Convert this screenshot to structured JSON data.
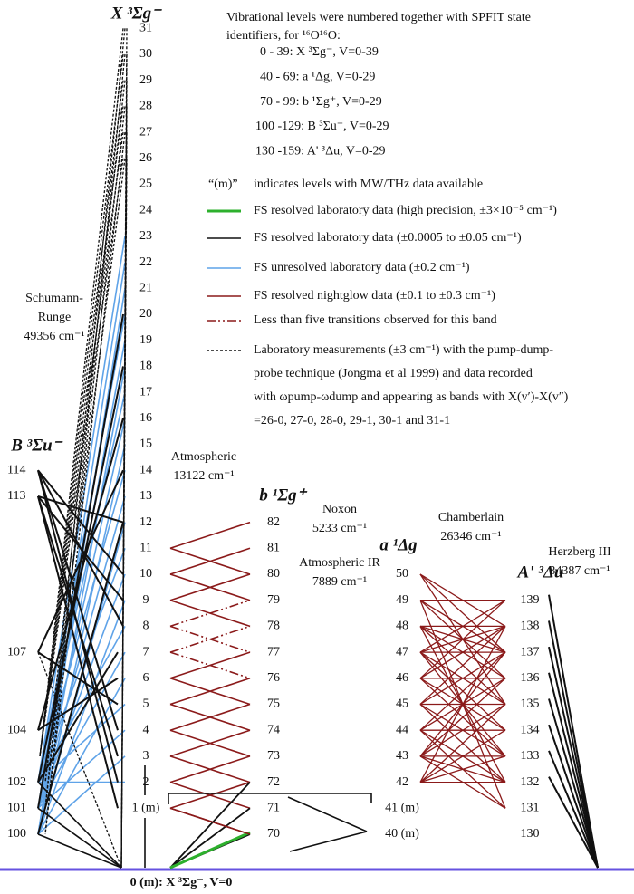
{
  "states": {
    "X": {
      "label": "X ³Σg⁻",
      "levels": [
        "1 (m)",
        "2",
        "3",
        "4",
        "5",
        "6",
        "7",
        "8",
        "9",
        "10",
        "11",
        "12",
        "13",
        "14",
        "15",
        "16",
        "17",
        "18",
        "19",
        "20",
        "21",
        "22",
        "23",
        "24",
        "25",
        "26",
        "27",
        "28",
        "29",
        "30",
        "31"
      ]
    },
    "B": {
      "label": "B ³Σu⁻",
      "levels": [
        "100",
        "101",
        "102",
        "104",
        "107",
        "113",
        "114"
      ]
    },
    "b": {
      "label": "b ¹Σg⁺",
      "levels": [
        "70",
        "71",
        "72",
        "73",
        "74",
        "75",
        "76",
        "77",
        "78",
        "79",
        "80",
        "81",
        "82"
      ]
    },
    "a": {
      "label": "a ¹Δg",
      "levels": [
        "40 (m)",
        "41 (m)",
        "42",
        "43",
        "44",
        "45",
        "46",
        "47",
        "48",
        "49",
        "50"
      ]
    },
    "A": {
      "label": "A' ³Δu",
      "levels": [
        "130",
        "131",
        "132",
        "133",
        "134",
        "135",
        "136",
        "137",
        "138",
        "139"
      ]
    }
  },
  "ground": "0 (m): X ³Σg⁻, V=0",
  "bands": {
    "schumann_runge": [
      "Schumann-",
      "Runge",
      "49356 cm⁻¹"
    ],
    "atmospheric": [
      "Atmospheric",
      "13122 cm⁻¹"
    ],
    "noxon": [
      "Noxon",
      "5233 cm⁻¹"
    ],
    "atmospheric_ir": [
      "Atmospheric IR",
      "7889 cm⁻¹"
    ],
    "chamberlain": [
      "Chamberlain",
      "26346 cm⁻¹"
    ],
    "herzberg": [
      "Herzberg III",
      "34387 cm⁻¹"
    ]
  },
  "legend": {
    "intro": [
      "Vibrational levels were numbered together with SPFIT state",
      "identifiers, for ¹⁶O¹⁶O:"
    ],
    "numbering": [
      "0 - 39: X ³Σg⁻, V=0-39",
      "40 - 69: a ¹Δg,   V=0-29",
      "70 - 99: b ¹Σg⁺,  V=0-29",
      "100 -129: B ³Σu⁻, V=0-29",
      "130 -159: A' ³Δu,  V=0-29"
    ],
    "m_mark": "“(m)”",
    "m_text": "indicates levels with MW/THz data available",
    "entries": [
      "FS resolved laboratory data (high precision, ±3×10⁻⁵ cm⁻¹)",
      "FS resolved laboratory data (±0.0005 to ±0.05 cm⁻¹)",
      "FS unresolved laboratory data (±0.2 cm⁻¹)",
      "FS resolved nightglow data (±0.1 to ±0.3 cm⁻¹)",
      "Less than five transitions observed for this band"
    ],
    "dashed": [
      "Laboratory measurements (±3 cm⁻¹) with the pump-dump-",
      "probe technique (Jongma et al 1999) and data recorded",
      "with ωpump-ωdump and appearing as bands with X(v′)-X(v″)",
      "=26-0, 27-0, 28-0, 29-1, 30-1 and 31-1"
    ]
  }
}
